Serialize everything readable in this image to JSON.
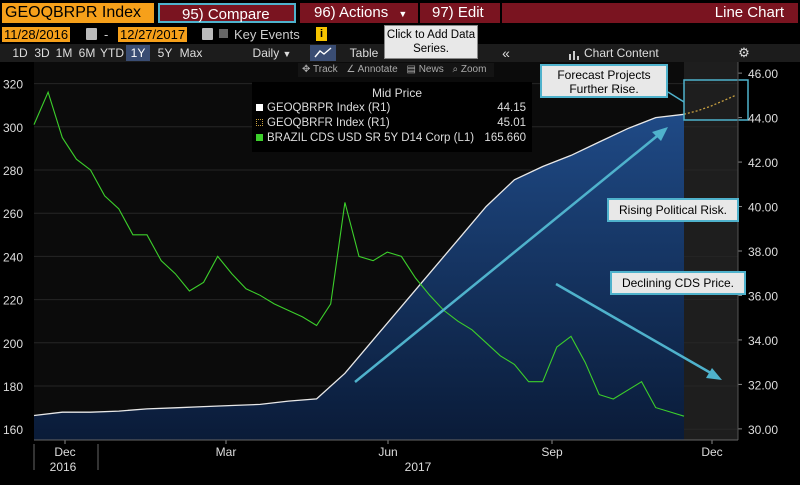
{
  "toolbar": {
    "ticker": "GEOQBRPR Index",
    "compare": "95) Compare",
    "actions": "96) Actions",
    "edit": "97) Edit",
    "view": "Line Chart",
    "start_date": "11/28/2016",
    "end_date": "12/27/2017",
    "date_sep": "-",
    "key_events": "Key Events",
    "tooltip": "Click to Add Data Series.",
    "table": "Table",
    "chart_content": "Chart Content",
    "periods": [
      "1D",
      "3D",
      "1M",
      "6M",
      "YTD",
      "1Y",
      "5Y",
      "Max"
    ],
    "active_period": "1Y",
    "frequency": "Daily",
    "tools": {
      "track": "Track",
      "annotate": "Annotate",
      "news": "News",
      "zoom": "Zoom"
    }
  },
  "legend": {
    "title": "Mid Price",
    "entries": [
      {
        "label": "GEOQBRPR Index  (R1)",
        "value": "44.15",
        "color": "#ffffff"
      },
      {
        "label": "GEOQBRFR Index  (R1)",
        "value": "45.01",
        "color": "#c8a040"
      },
      {
        "label": "BRAZIL CDS USD SR 5Y D14 Corp  (L1)",
        "value": "165.660",
        "color": "#3ccf2b"
      }
    ]
  },
  "annotations": {
    "forecast": "Forecast Projects Further Rise.",
    "risk": "Rising Political Risk.",
    "cds": "Declining CDS Price."
  },
  "chart_data": {
    "type": "line",
    "x_tick_labels": [
      "Dec",
      "Mar",
      "Jun",
      "Sep",
      "Dec"
    ],
    "x_year_labels": [
      "2016",
      "2017"
    ],
    "left_axis": {
      "range": [
        155,
        330
      ],
      "ticks": [
        160,
        180,
        200,
        220,
        240,
        260,
        280,
        300,
        320
      ]
    },
    "right_axis": {
      "range": [
        29.5,
        46.5
      ],
      "ticks": [
        "30.00",
        "32.00",
        "34.00",
        "36.00",
        "38.00",
        "40.00",
        "42.00",
        "44.00",
        "46.00"
      ]
    },
    "series": [
      {
        "name": "GEOQBRPR Index",
        "axis": "right",
        "color": "#ffffff",
        "values": [
          30.6,
          30.75,
          30.75,
          30.8,
          30.9,
          30.95,
          31.0,
          31.05,
          31.1,
          31.25,
          31.35,
          32.5,
          34.0,
          35.5,
          37.0,
          38.5,
          40.0,
          41.2,
          41.8,
          42.3,
          42.9,
          43.5,
          44.0,
          44.15
        ]
      },
      {
        "name": "GEOQBRFR Index",
        "axis": "right",
        "color": "#c8a040",
        "dashed": true,
        "values": [
          44.15,
          44.3,
          44.5,
          44.75,
          45.01
        ]
      },
      {
        "name": "BRAZIL CDS USD SR 5Y D14 Corp",
        "axis": "left",
        "color": "#3ccf2b",
        "values": [
          301,
          316,
          295,
          285,
          280,
          268,
          262,
          250,
          250,
          238,
          232,
          224,
          228,
          240,
          232,
          225,
          222,
          218,
          215,
          212,
          208,
          218,
          265,
          240,
          238,
          242,
          240,
          230,
          222,
          215,
          210,
          206,
          200,
          194,
          190,
          182,
          182,
          198,
          203,
          191,
          176,
          174,
          178,
          182,
          170,
          168,
          166
        ]
      }
    ]
  }
}
